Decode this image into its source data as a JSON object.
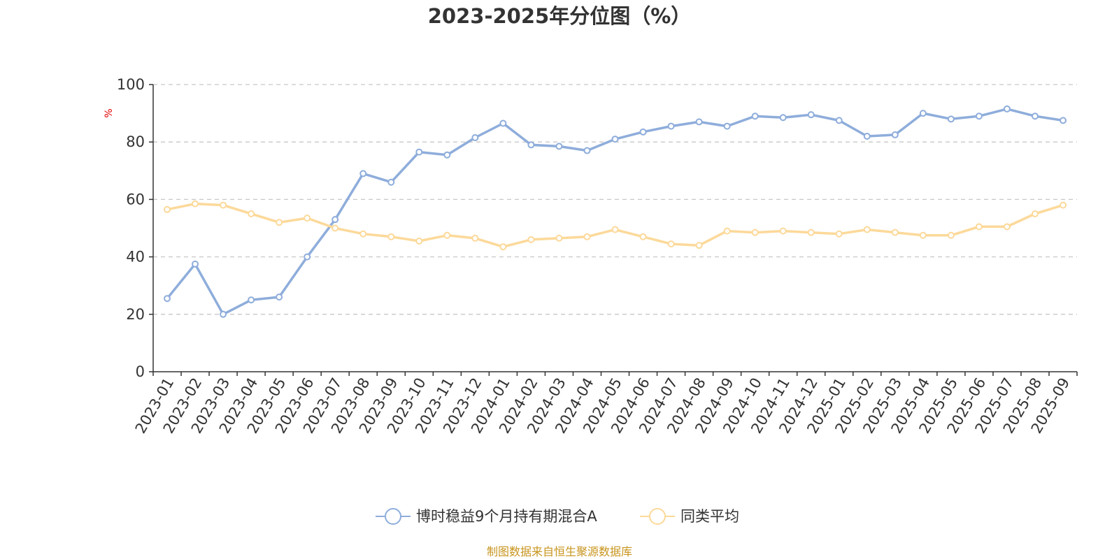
{
  "chart_data": {
    "type": "line",
    "title": "2023-2025年分位图（%）",
    "ylabel": "%",
    "ylim": [
      0,
      100
    ],
    "yticks": [
      "0",
      "20",
      "40",
      "60",
      "80",
      "100"
    ],
    "grid": true,
    "legend_position": "bottom-center",
    "categories": [
      "2023-01",
      "2023-02",
      "2023-03",
      "2023-04",
      "2023-05",
      "2023-06",
      "2023-07",
      "2023-08",
      "2023-09",
      "2023-10",
      "2023-11",
      "2023-12",
      "2024-01",
      "2024-02",
      "2024-03",
      "2024-04",
      "2024-05",
      "2024-06",
      "2024-07",
      "2024-08",
      "2024-09",
      "2024-10",
      "2024-11",
      "2024-12",
      "2025-01",
      "2025-02",
      "2025-03",
      "2025-04",
      "2025-05",
      "2025-06",
      "2025-07",
      "2025-08",
      "2025-09"
    ],
    "series": [
      {
        "name": "博时稳益9个月持有期混合A",
        "color": "#8eaddb",
        "values": [
          25.5,
          37.5,
          20.0,
          25.0,
          26.0,
          40.0,
          53.0,
          69.0,
          66.0,
          76.5,
          75.5,
          81.5,
          86.5,
          79.0,
          78.5,
          77.0,
          81.0,
          83.5,
          85.5,
          87.0,
          85.5,
          89.0,
          88.5,
          89.5,
          87.5,
          82.0,
          82.5,
          90.0,
          88.0,
          89.0,
          91.5,
          89.0,
          87.5
        ]
      },
      {
        "name": "同类平均",
        "color": "#fcd99a",
        "values": [
          56.5,
          58.5,
          58.0,
          55.0,
          52.0,
          53.5,
          50.0,
          48.0,
          47.0,
          45.5,
          47.5,
          46.5,
          43.5,
          46.0,
          46.5,
          47.0,
          49.5,
          47.0,
          44.5,
          44.0,
          49.0,
          48.5,
          49.0,
          48.5,
          48.0,
          49.5,
          48.5,
          47.5,
          47.5,
          50.5,
          50.5,
          55.0,
          58.0
        ]
      }
    ]
  },
  "footer": {
    "source": "制图数据来自恒生聚源数据库"
  }
}
